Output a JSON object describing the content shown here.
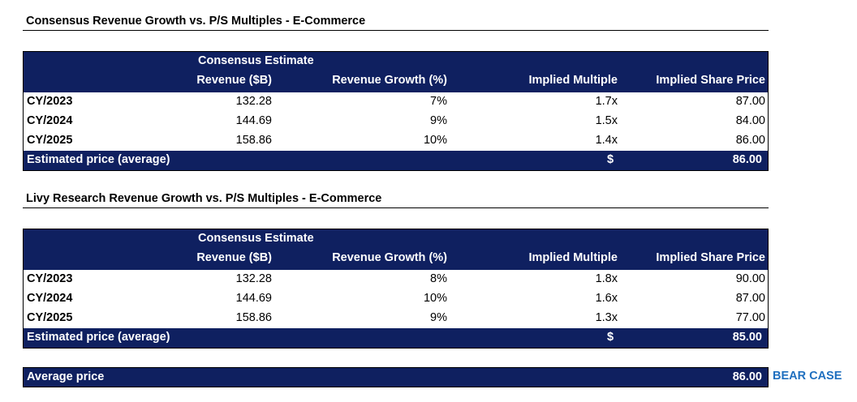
{
  "sections": [
    {
      "title": "Consensus Revenue Growth vs. P/S Multiples - E-Commerce",
      "group_header": "Consensus Estimate",
      "columns": [
        "Revenue ($B)",
        "Revenue Growth (%)",
        "Implied Multiple",
        "Implied Share Price"
      ],
      "rows": [
        {
          "label": "CY/2023",
          "revenue": "132.28",
          "growth": "7%",
          "multiple": "1.7x",
          "price": "87.00"
        },
        {
          "label": "CY/2024",
          "revenue": "144.69",
          "growth": "9%",
          "multiple": "1.5x",
          "price": "84.00"
        },
        {
          "label": "CY/2025",
          "revenue": "158.86",
          "growth": "10%",
          "multiple": "1.4x",
          "price": "86.00"
        }
      ],
      "estimate": {
        "label": "Estimated price (average)",
        "currency": "$",
        "value": "86.00"
      }
    },
    {
      "title": "Livy Research Revenue Growth vs. P/S Multiples - E-Commerce",
      "group_header": "Consensus Estimate",
      "columns": [
        "Revenue ($B)",
        "Revenue Growth (%)",
        "Implied Multiple",
        "Implied Share Price"
      ],
      "rows": [
        {
          "label": "CY/2023",
          "revenue": "132.28",
          "growth": "8%",
          "multiple": "1.8x",
          "price": "90.00"
        },
        {
          "label": "CY/2024",
          "revenue": "144.69",
          "growth": "10%",
          "multiple": "1.6x",
          "price": "87.00"
        },
        {
          "label": "CY/2025",
          "revenue": "158.86",
          "growth": "9%",
          "multiple": "1.3x",
          "price": "77.00"
        }
      ],
      "estimate": {
        "label": "Estimated price (average)",
        "currency": "$",
        "value": "85.00"
      }
    }
  ],
  "average": {
    "label": "Average price",
    "value": "86.00",
    "case": "BEAR CASE"
  },
  "colors": {
    "header_bg": "#0f2060",
    "case_label": "#1f6fbf"
  }
}
